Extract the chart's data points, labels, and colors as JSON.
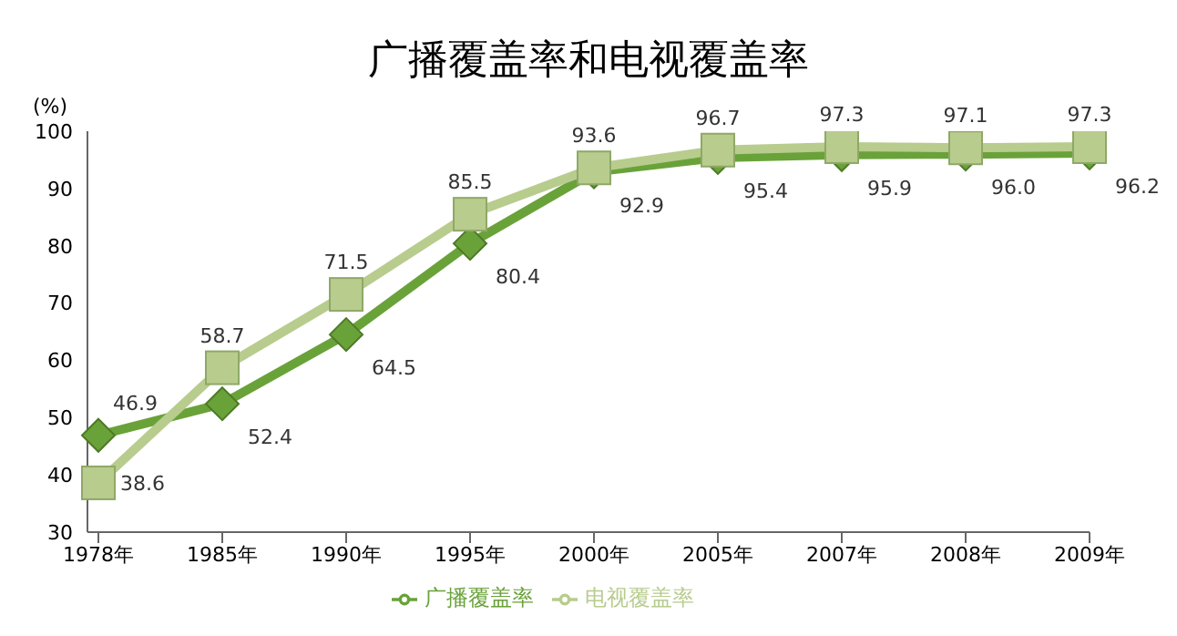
{
  "chart_data": {
    "type": "line",
    "title": "广播覆盖率和电视覆盖率",
    "ylabel": "(%)",
    "categories": [
      "1978年",
      "1985年",
      "1990年",
      "1995年",
      "2000年",
      "2005年",
      "2007年",
      "2008年",
      "2009年"
    ],
    "series": [
      {
        "name": "广播覆盖率",
        "color": "#6aa23a",
        "marker": "diamond",
        "values": [
          46.9,
          52.4,
          64.5,
          80.4,
          92.9,
          95.4,
          95.9,
          96.0,
          96.2
        ],
        "value_labels": [
          "46.9",
          "52.4",
          "64.5",
          "80.4",
          "92.9",
          "95.4",
          "95.9",
          "96.0",
          "96.2"
        ]
      },
      {
        "name": "电视覆盖率",
        "color": "#b8cc8e",
        "marker": "square",
        "values": [
          38.6,
          58.7,
          71.5,
          85.5,
          93.6,
          96.7,
          97.3,
          97.1,
          97.3
        ],
        "value_labels": [
          "38.6",
          "58.7",
          "71.5",
          "85.5",
          "93.6",
          "96.7",
          "97.3",
          "97.1",
          "97.3"
        ]
      }
    ],
    "ylim": [
      30,
      100
    ],
    "yticks": [
      30,
      40,
      50,
      60,
      70,
      80,
      90,
      100
    ],
    "grid": false,
    "legend": "bottom",
    "line_style": "solid"
  }
}
